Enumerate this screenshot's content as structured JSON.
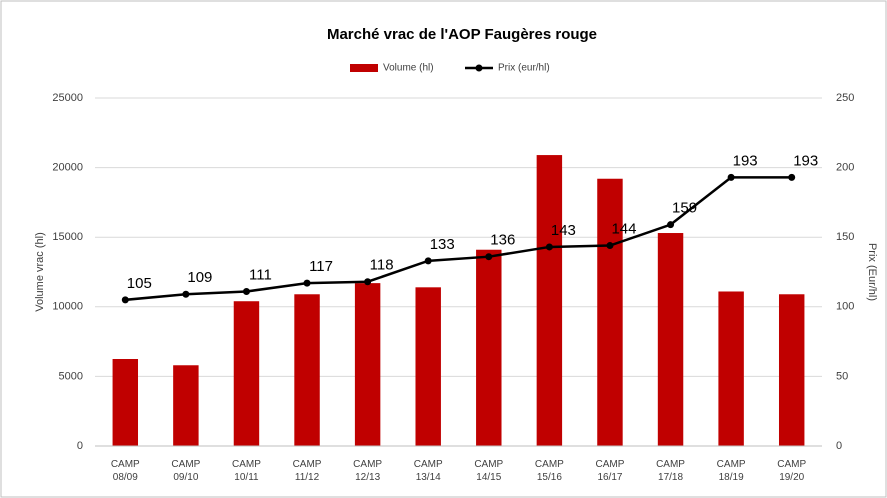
{
  "chart_data": {
    "type": "bar_line",
    "title": "Marché vrac de l'AOP Faugères rouge",
    "ylabel": "Volume vrac (hl)",
    "y2label": "Prix (Eur/hl)",
    "categories": [
      "CAMP 08/09",
      "CAMP 09/10",
      "CAMP 10/11",
      "CAMP 11/12",
      "CAMP 12/13",
      "CAMP 13/14",
      "CAMP 14/15",
      "CAMP 15/16",
      "CAMP 16/17",
      "CAMP 17/18",
      "CAMP 18/19",
      "CAMP 19/20"
    ],
    "series": [
      {
        "name": "Volume (hl)",
        "type": "bar",
        "color": "#c00000",
        "values": [
          6250,
          5800,
          10400,
          10900,
          11700,
          11400,
          14100,
          20900,
          19200,
          15300,
          11100,
          10900
        ]
      },
      {
        "name": "Prix (eur/hl)",
        "type": "line",
        "axis": "y2",
        "color": "#000000",
        "values": [
          105,
          109,
          111,
          117,
          118,
          133,
          136,
          143,
          144,
          159,
          193,
          193
        ]
      }
    ],
    "ylim": [
      0,
      25000
    ],
    "yticks": [
      0,
      5000,
      10000,
      15000,
      20000,
      25000
    ],
    "y2lim": [
      0,
      250
    ],
    "y2ticks": [
      0,
      50,
      100,
      150,
      200,
      250
    ],
    "grid": true,
    "legend": "top"
  }
}
